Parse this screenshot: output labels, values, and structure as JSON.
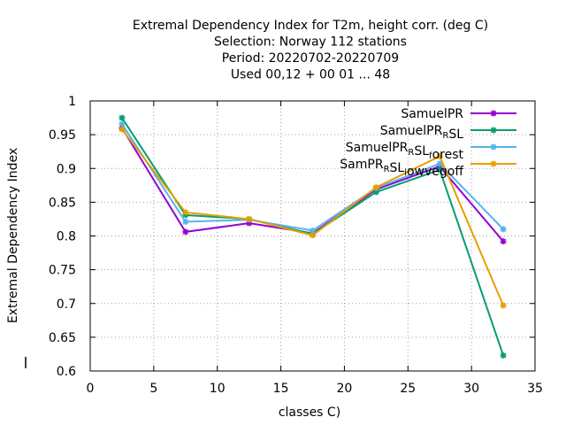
{
  "chart_data": {
    "type": "line",
    "title_lines": [
      "Extremal Dependency Index  for T2m, height corr. (deg C)",
      "Selection: Norway    112 stations",
      "Period: 20220702-20220709",
      "Used  00,12  + 00 01 ... 48"
    ],
    "xlabel": "classes C)",
    "ylabel": "Extremal Dependency Index",
    "xlim": [
      0,
      35
    ],
    "ylim": [
      0.6,
      1.0
    ],
    "xticks": [
      0,
      5,
      10,
      15,
      20,
      25,
      30,
      35
    ],
    "yticks": [
      0.6,
      0.65,
      0.7,
      0.75,
      0.8,
      0.85,
      0.9,
      0.95,
      1.0
    ],
    "ytick_labels": [
      "0.6",
      "0.65",
      "0.7",
      "0.75",
      "0.8",
      "0.85",
      "0.9",
      "0.95",
      "1"
    ],
    "grid": true,
    "legend_position": "top-right",
    "x": [
      2.5,
      7.5,
      12.5,
      17.5,
      22.5,
      27.5,
      32.5
    ],
    "series": [
      {
        "name": "SamuelPR",
        "name_parts": [
          {
            "t": "SamuelPR"
          }
        ],
        "color": "#9400d3",
        "values": [
          0.96,
          0.806,
          0.819,
          0.804,
          0.869,
          0.903,
          0.792
        ]
      },
      {
        "name": "SamuelPR_RSL",
        "name_parts": [
          {
            "t": "SamuelPR"
          },
          {
            "t": "R",
            "sub": true
          },
          {
            "t": "SL"
          }
        ],
        "color": "#009e73",
        "values": [
          0.975,
          0.831,
          0.825,
          0.803,
          0.865,
          0.898,
          0.623
        ]
      },
      {
        "name": "SamuelPR_RSL_forest",
        "name_parts": [
          {
            "t": "SamuelPR"
          },
          {
            "t": "R",
            "sub": true
          },
          {
            "t": "SL"
          },
          {
            "t": "f",
            "sub": true
          },
          {
            "t": "orest"
          }
        ],
        "color": "#56b4e9",
        "values": [
          0.966,
          0.821,
          0.824,
          0.808,
          0.871,
          0.907,
          0.81
        ]
      },
      {
        "name": "SamPR_RSL_lowvegoff",
        "name_parts": [
          {
            "t": "SamPR"
          },
          {
            "t": "R",
            "sub": true
          },
          {
            "t": "SL"
          },
          {
            "t": "l",
            "sub": true
          },
          {
            "t": "owvegoff"
          }
        ],
        "color": "#e69f00",
        "values": [
          0.958,
          0.835,
          0.825,
          0.801,
          0.872,
          0.918,
          0.697
        ]
      }
    ]
  }
}
